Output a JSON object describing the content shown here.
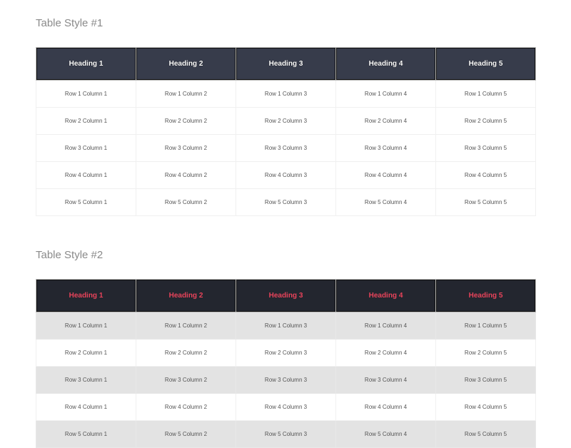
{
  "tables": [
    {
      "title": "Table Style #1",
      "header_color": "#373c4b",
      "header_text_color": "#ffffff",
      "headings": [
        "Heading 1",
        "Heading 2",
        "Heading 3",
        "Heading 4",
        "Heading 5"
      ],
      "rows": [
        [
          "Row 1 Column 1",
          "Row 1 Column 2",
          "Row 1 Column 3",
          "Row 1 Column 4",
          "Row 1 Column 5"
        ],
        [
          "Row 2 Column 1",
          "Row 2 Column 2",
          "Row 2 Column 3",
          "Row 2 Column 4",
          "Row 2 Column 5"
        ],
        [
          "Row 3 Column 1",
          "Row 3 Column 2",
          "Row 3 Column 3",
          "Row 3 Column 4",
          "Row 3 Column 5"
        ],
        [
          "Row 4 Column 1",
          "Row 4 Column 2",
          "Row 4 Column 3",
          "Row 4 Column 4",
          "Row 4 Column 5"
        ],
        [
          "Row 5 Column 1",
          "Row 5 Column 2",
          "Row 5 Column 3",
          "Row 5 Column 4",
          "Row 5 Column 5"
        ]
      ]
    },
    {
      "title": "Table Style #2",
      "header_color": "#23262f",
      "header_text_color": "#e8435a",
      "stripe_color": "#e3e3e3",
      "headings": [
        "Heading 1",
        "Heading 2",
        "Heading 3",
        "Heading 4",
        "Heading 5"
      ],
      "rows": [
        [
          "Row 1 Column 1",
          "Row 1 Column 2",
          "Row 1 Column 3",
          "Row 1 Column 4",
          "Row 1 Column 5"
        ],
        [
          "Row 2 Column 1",
          "Row 2 Column 2",
          "Row 2 Column 3",
          "Row 2 Column 4",
          "Row 2 Column 5"
        ],
        [
          "Row 3 Column 1",
          "Row 3 Column 2",
          "Row 3 Column 3",
          "Row 3 Column 4",
          "Row 3 Column 5"
        ],
        [
          "Row 4 Column 1",
          "Row 4 Column 2",
          "Row 4 Column 3",
          "Row 4 Column 4",
          "Row 4 Column 5"
        ],
        [
          "Row 5 Column 1",
          "Row 5 Column 2",
          "Row 5 Column 3",
          "Row 5 Column 4",
          "Row 5 Column 5"
        ]
      ]
    }
  ]
}
